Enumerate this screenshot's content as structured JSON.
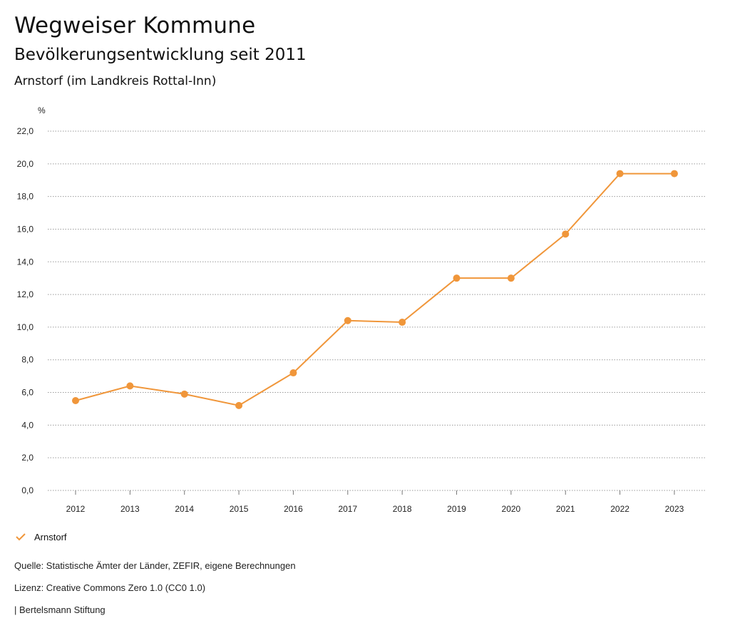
{
  "header": {
    "title": "Wegweiser Kommune",
    "subtitle": "Bevölkerungsentwicklung seit 2011",
    "region": "Arnstorf (im Landkreis Rottal-Inn)"
  },
  "chart_data": {
    "type": "line",
    "unit_label": "%",
    "x": [
      "2012",
      "2013",
      "2014",
      "2015",
      "2016",
      "2017",
      "2018",
      "2019",
      "2020",
      "2021",
      "2022",
      "2023"
    ],
    "series": [
      {
        "name": "Arnstorf",
        "color": "#f0963a",
        "values": [
          5.5,
          6.4,
          5.9,
          5.2,
          7.2,
          10.4,
          10.3,
          13.0,
          13.0,
          15.7,
          19.4,
          19.4
        ]
      }
    ],
    "ylim": [
      0,
      22
    ],
    "yticks": [
      "0,0",
      "2,0",
      "4,0",
      "6,0",
      "8,0",
      "10,0",
      "12,0",
      "14,0",
      "16,0",
      "18,0",
      "20,0",
      "22,0"
    ],
    "grid": true,
    "legend_position": "bottom-left"
  },
  "legend": {
    "label": "Arnstorf",
    "icon": "check-icon"
  },
  "footer": {
    "source": "Quelle: Statistische Ämter der Länder, ZEFIR, eigene Berechnungen",
    "license": "Lizenz: Creative Commons Zero 1.0 (CC0 1.0)",
    "publisher": "| Bertelsmann Stiftung"
  }
}
